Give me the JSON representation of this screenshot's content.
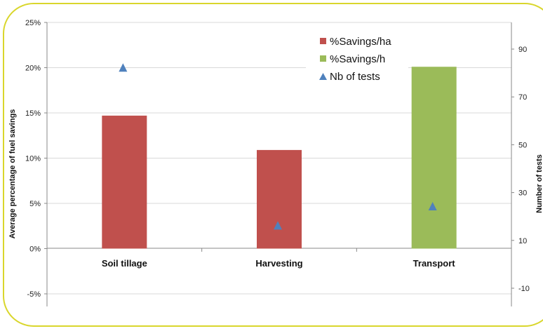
{
  "chart_data": {
    "type": "bar",
    "categories": [
      "Soil tillage",
      "Harvesting",
      "Transport"
    ],
    "series": [
      {
        "name": "%Savings/ha",
        "type": "bar",
        "axis": "left",
        "color": "#c0504d",
        "values": [
          14.7,
          10.9,
          null
        ]
      },
      {
        "name": "%Savings/h",
        "type": "bar",
        "axis": "left",
        "color": "#9bbb59",
        "values": [
          null,
          null,
          20.1
        ]
      },
      {
        "name": "Nb of tests",
        "type": "scatter",
        "marker": "triangle",
        "axis": "right",
        "color": "#4f81bd",
        "values": [
          82,
          16,
          24
        ]
      }
    ],
    "ylabel": "Average percentage of fuel savings",
    "y2label": "Number of tests",
    "ylim": [
      -6.5,
      25
    ],
    "yticks": [
      {
        "label": "25%",
        "value": 25
      },
      {
        "label": "20%",
        "value": 20
      },
      {
        "label": "15%",
        "value": 15
      },
      {
        "label": "10%",
        "value": 10
      },
      {
        "label": "5%",
        "value": 5
      },
      {
        "label": "0%",
        "value": 0
      },
      {
        "label": "-5%",
        "value": -5
      }
    ],
    "y2lim": [
      -16,
      98.5
    ],
    "y2ticks": [
      {
        "label": "90",
        "value": 90
      },
      {
        "label": "70",
        "value": 70
      },
      {
        "label": "50",
        "value": 50
      },
      {
        "label": "30",
        "value": 30
      },
      {
        "label": "10",
        "value": 10
      },
      {
        "label": "-10",
        "value": -10
      }
    ],
    "grid": "horizontal",
    "legend_position": "top-right"
  }
}
